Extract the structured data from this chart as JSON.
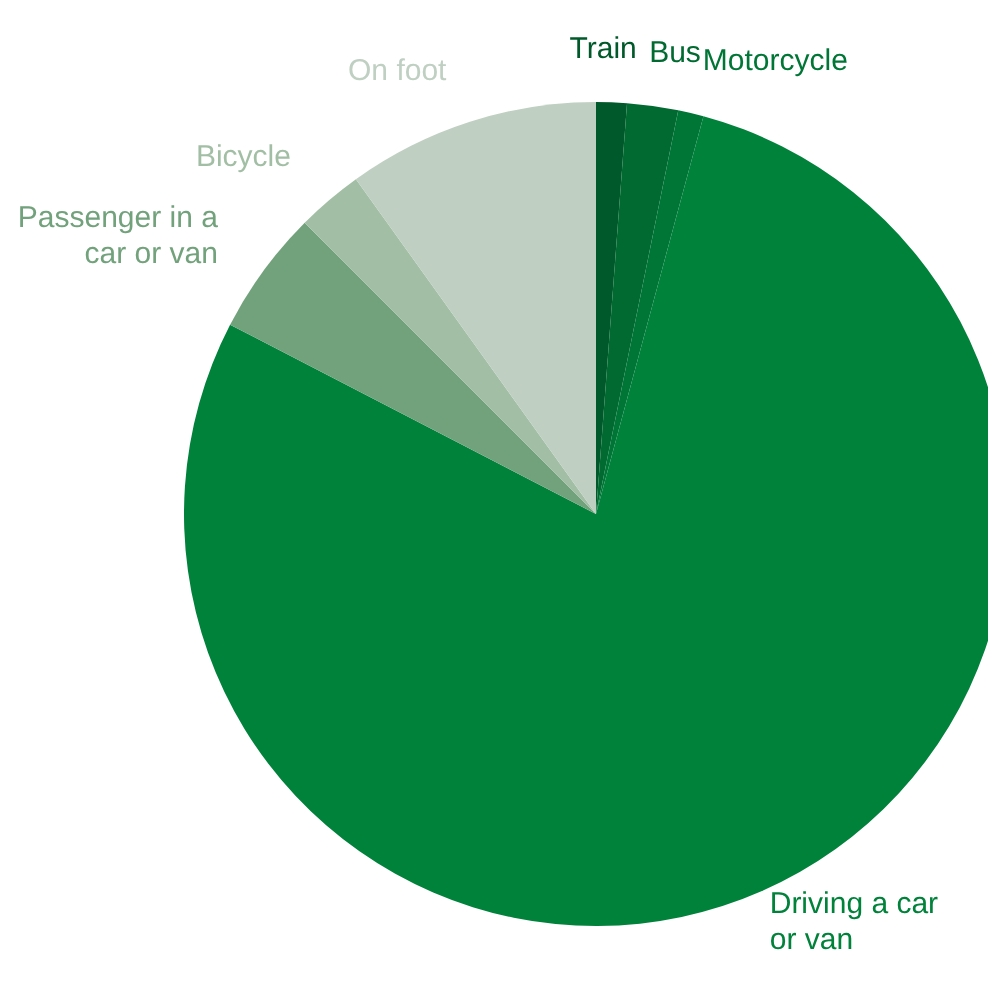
{
  "chart_data": {
    "type": "pie",
    "categories": [
      "Train",
      "Bus",
      "Motorcycle",
      "Driving a car or van",
      "Passenger in a car or van",
      "Bicycle",
      "On foot"
    ],
    "values": [
      1.2,
      2,
      1,
      78.4,
      4.9,
      2.6,
      9.9
    ],
    "colors": [
      "#00592a",
      "#006a31",
      "#007636",
      "#00823b",
      "#72a27c",
      "#a2bfa5",
      "#bfcfc2"
    ]
  }
}
